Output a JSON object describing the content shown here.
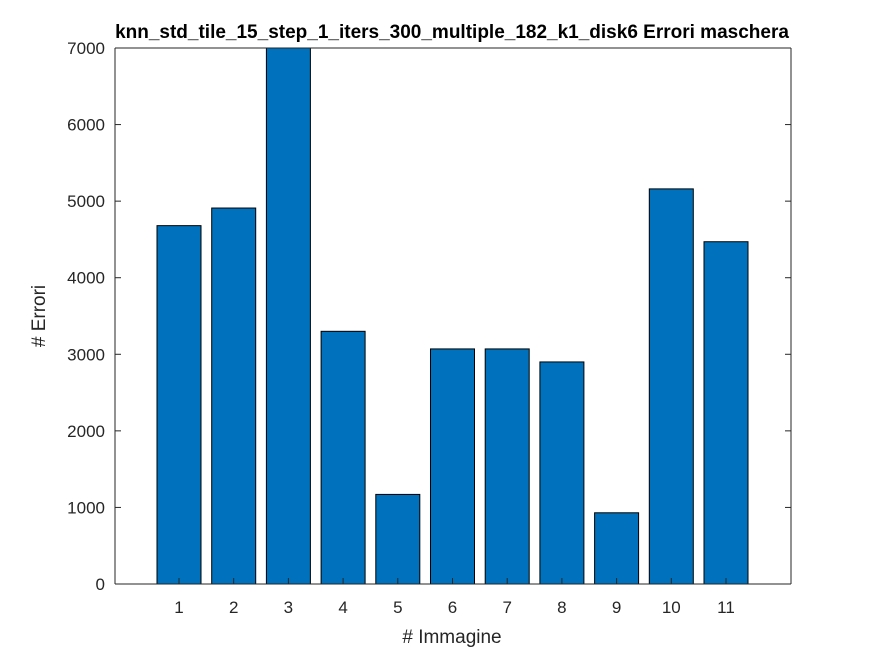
{
  "chart_data": {
    "type": "bar",
    "title": "knn_std_tile_15_step_1_iters_300_multiple_182_k1_disk6 Errori maschera",
    "xlabel": "# Immagine",
    "ylabel": "# Errori",
    "categories": [
      "1",
      "2",
      "3",
      "4",
      "5",
      "6",
      "7",
      "8",
      "9",
      "10",
      "11"
    ],
    "values": [
      4680,
      4910,
      7000,
      3300,
      1170,
      3070,
      3070,
      2900,
      930,
      5160,
      4470
    ],
    "ylim": [
      0,
      7000
    ],
    "yticks": [
      "0",
      "1000",
      "2000",
      "3000",
      "4000",
      "5000",
      "6000",
      "7000"
    ],
    "grid": false,
    "bar_color": "#0072BD",
    "edge_color": "#000000"
  }
}
